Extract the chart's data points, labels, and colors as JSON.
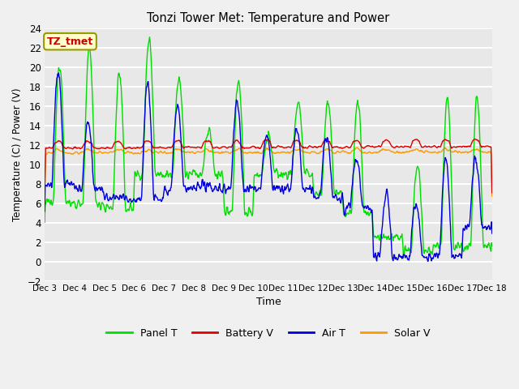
{
  "title": "Tonzi Tower Met: Temperature and Power",
  "xlabel": "Time",
  "ylabel": "Temperature (C) / Power (V)",
  "ylim": [
    -2,
    24
  ],
  "yticks": [
    -2,
    0,
    2,
    4,
    6,
    8,
    10,
    12,
    14,
    16,
    18,
    20,
    22,
    24
  ],
  "annotation_text": "TZ_tmet",
  "annotation_color": "#cc0000",
  "annotation_bg": "#ffffcc",
  "fig_bg": "#f0f0f0",
  "plot_bg": "#e8e8e8",
  "grid_color": "#ffffff",
  "colors": {
    "panel_t": "#00dd00",
    "battery_v": "#dd0000",
    "air_t": "#0000dd",
    "solar_v": "#ff9900"
  },
  "x_tick_labels": [
    "Dec 3",
    "Dec 4",
    "Dec 5",
    "Dec 6",
    "Dec 7",
    "Dec 8",
    "Dec 9",
    "Dec 10",
    "Dec 11",
    "Dec 12",
    "Dec 13",
    "Dec 14",
    "Dec 15",
    "Dec 16",
    "Dec 17",
    "Dec 18"
  ],
  "num_points": 960,
  "linewidth": 1.0
}
